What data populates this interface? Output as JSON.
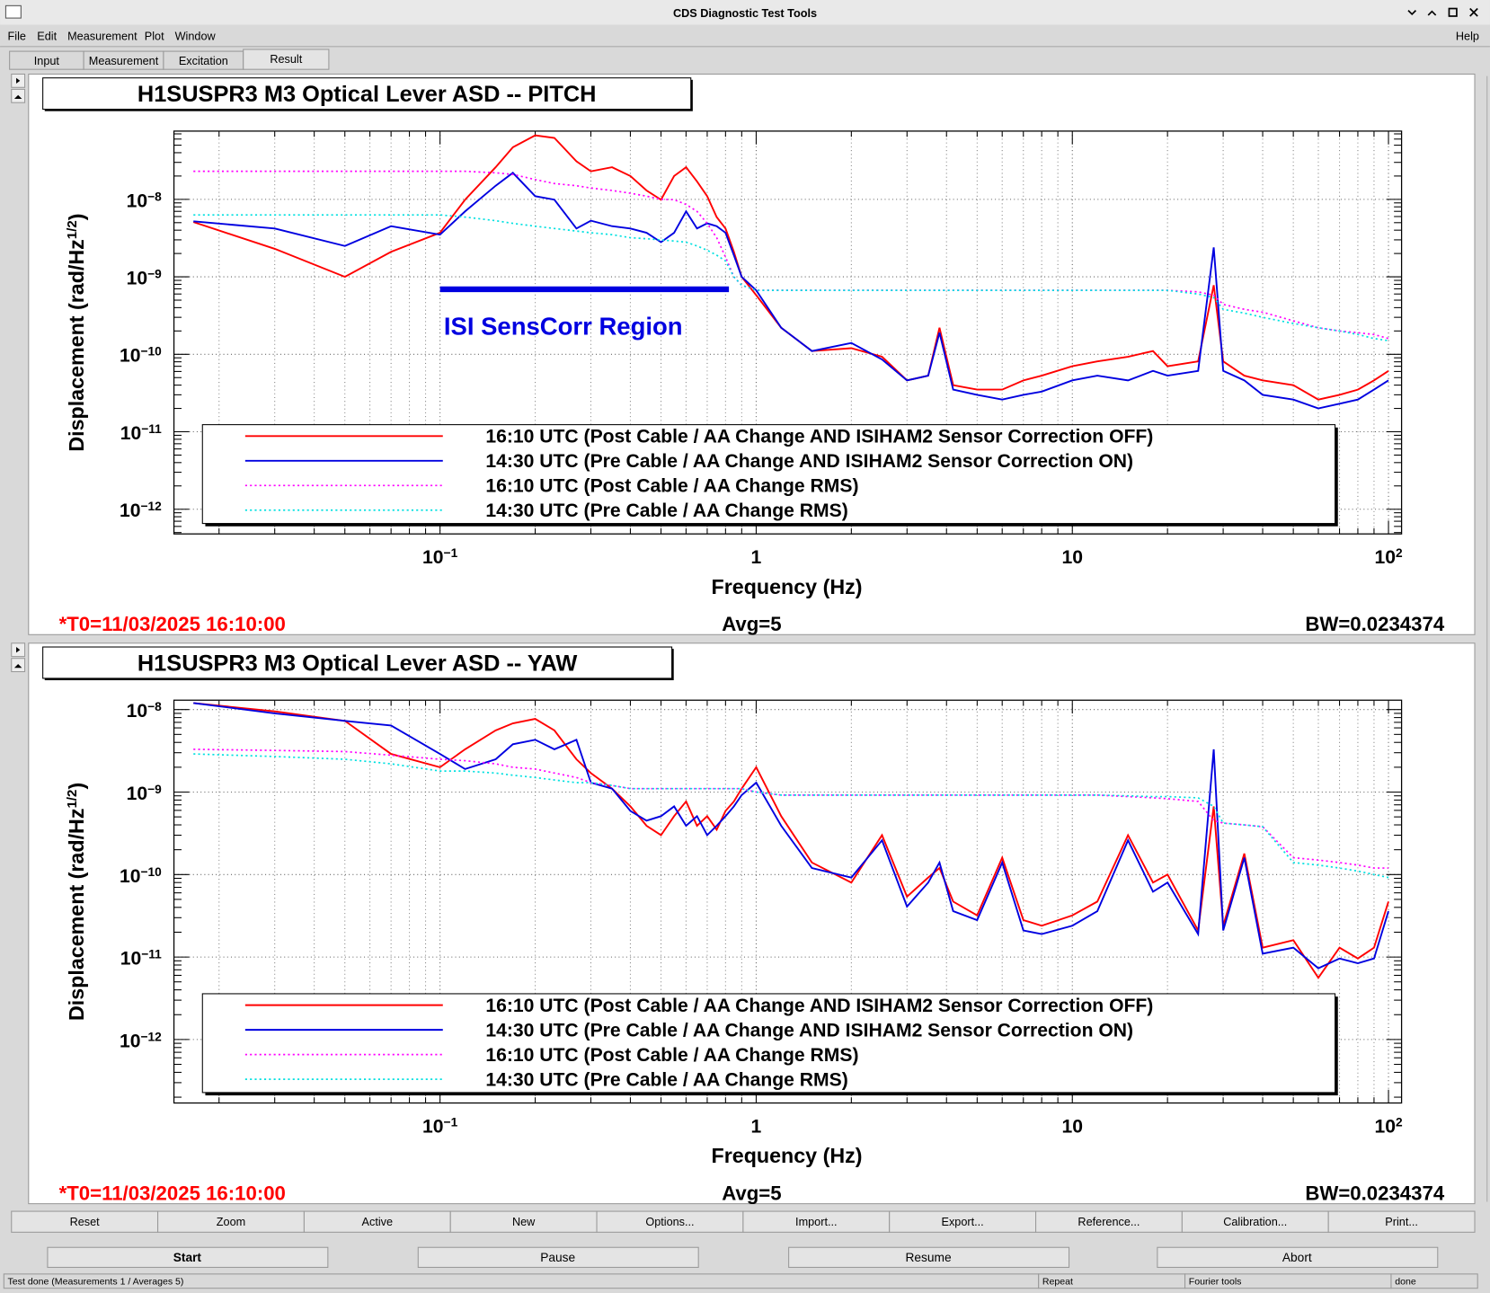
{
  "window": {
    "title": "CDS Diagnostic Test Tools"
  },
  "menu": [
    "File",
    "Edit",
    "Measurement",
    "Plot",
    "Window"
  ],
  "help": "Help",
  "tabs": [
    "Input",
    "Measurement",
    "Excitation",
    "Result"
  ],
  "selected_tab": 3,
  "chart_data": [
    {
      "type": "line",
      "title": "H1SUSPR3 M3 Optical Lever ASD -- PITCH",
      "xlabel": "Frequency (Hz)",
      "ylabel": "Displacement (rad/Hz^{1/2})",
      "xlog": true,
      "ylog": true,
      "grid": true,
      "legend": "bottom",
      "xlim": [
        0.0144,
        110
      ],
      "ylim": [
        4.8e-13,
        7.6e-08
      ],
      "xticks": [
        {
          "value": 0.1,
          "label": "10^{−1}"
        },
        1,
        10,
        {
          "value": 100,
          "label": "10^{2}"
        }
      ],
      "yticks": [
        {
          "value": 1e-12,
          "label": "10^{−12}"
        },
        {
          "value": 1e-11,
          "label": "10^{−11}"
        },
        {
          "value": 1e-10,
          "label": "10^{−10}"
        },
        {
          "value": 1e-09,
          "label": "10^{−9}"
        },
        {
          "value": 1e-08,
          "label": "10^{−8}"
        }
      ],
      "x": [
        0.0166,
        0.03,
        0.05,
        0.07,
        0.1,
        0.12,
        0.15,
        0.17,
        0.2,
        0.23,
        0.27,
        0.3,
        0.35,
        0.4,
        0.45,
        0.5,
        0.55,
        0.6,
        0.65,
        0.7,
        0.75,
        0.8,
        0.85,
        0.9,
        1,
        1.2,
        1.5,
        2,
        2.5,
        3,
        3.5,
        3.8,
        4.2,
        5,
        6,
        7,
        8,
        10,
        12,
        15,
        18,
        20,
        25,
        28,
        30,
        35,
        40,
        50,
        60,
        70,
        80,
        90,
        100
      ],
      "series": [
        {
          "name": "16:10 UTC (Post Cable / AA Change AND ISIHAM2 Sensor Correction OFF)",
          "color": "#ff0000",
          "style": "solid",
          "values": [
            5.1e-09,
            2.3e-09,
            1e-09,
            2.1e-09,
            3.7e-09,
            9.9e-09,
            2.6e-08,
            4.7e-08,
            6.7e-08,
            6.2e-08,
            3.1e-08,
            2.3e-08,
            2.6e-08,
            2e-08,
            1.3e-08,
            9.9e-09,
            2e-08,
            2.6e-08,
            1.7e-08,
            1.1e-08,
            5.9e-09,
            4.2e-09,
            2.1e-09,
            1e-09,
            5.8e-10,
            2.2e-10,
            1.1e-10,
            1.2e-10,
            9.3e-11,
            4.6e-11,
            5.3e-11,
            2.2e-10,
            4e-11,
            3.5e-11,
            3.5e-11,
            4.6e-11,
            5.3e-11,
            7e-11,
            8.1e-11,
            9.3e-11,
            1.1e-10,
            7e-11,
            8.1e-11,
            7.8e-10,
            8.1e-11,
            5.3e-11,
            4.6e-11,
            4e-11,
            2.6e-11,
            3e-11,
            3.5e-11,
            4.6e-11,
            6.1e-11
          ]
        },
        {
          "name": "14:30 UTC (Pre Cable / AA Change AND ISIHAM2 Sensor Correction ON)",
          "color": "#0000e0",
          "style": "solid",
          "values": [
            5.2e-09,
            4.2e-09,
            2.5e-09,
            4.5e-09,
            3.5e-09,
            7e-09,
            1.5e-08,
            2.2e-08,
            1.1e-08,
            9.9e-09,
            4.2e-09,
            5.3e-09,
            4.5e-09,
            4.2e-09,
            3.7e-09,
            2.8e-09,
            3.7e-09,
            7e-09,
            4.2e-09,
            4.9e-09,
            4.5e-09,
            3.7e-09,
            1.9e-09,
            1e-09,
            6.7e-10,
            2.2e-10,
            1.1e-10,
            1.4e-10,
            8.6e-11,
            4.6e-11,
            5.3e-11,
            1.9e-10,
            3.5e-11,
            3e-11,
            2.6e-11,
            3e-11,
            3.3e-11,
            4.6e-11,
            5.3e-11,
            4.6e-11,
            6.1e-11,
            5.3e-11,
            6.1e-11,
            2.4e-09,
            6.1e-11,
            4.6e-11,
            3e-11,
            2.6e-11,
            2e-11,
            2.3e-11,
            2.6e-11,
            3.5e-11,
            4.6e-11
          ]
        },
        {
          "name": "16:10 UTC (Post Cable / AA Change RMS)",
          "color": "#ff00ff",
          "style": "dotted",
          "values": [
            2.3e-08,
            2.3e-08,
            2.3e-08,
            2.3e-08,
            2.3e-08,
            2.3e-08,
            2.2e-08,
            2.1e-08,
            1.8e-08,
            1.6e-08,
            1.5e-08,
            1.4e-08,
            1.3e-08,
            1.2e-08,
            1.1e-08,
            1e-08,
            9.9e-09,
            8.6e-09,
            7e-09,
            4.9e-09,
            3.2e-09,
            1.8e-09,
            1e-09,
            7.8e-10,
            6.7e-10,
            6.7e-10,
            6.7e-10,
            6.7e-10,
            6.7e-10,
            6.7e-10,
            6.7e-10,
            6.7e-10,
            6.7e-10,
            6.7e-10,
            6.7e-10,
            6.7e-10,
            6.7e-10,
            6.7e-10,
            6.7e-10,
            6.7e-10,
            6.7e-10,
            6.7e-10,
            6.4e-10,
            5.8e-10,
            4.4e-10,
            3.8e-10,
            3.5e-10,
            2.7e-10,
            2.2e-10,
            2e-10,
            1.9e-10,
            1.8e-10,
            1.6e-10
          ]
        },
        {
          "name": "14:30 UTC (Pre Cable / AA Change RMS)",
          "color": "#00e0e0",
          "style": "dotted",
          "values": [
            6.3e-09,
            6.3e-09,
            6.3e-09,
            6.3e-09,
            6.3e-09,
            5.9e-09,
            5.3e-09,
            4.9e-09,
            4.5e-09,
            4.2e-09,
            3.9e-09,
            3.7e-09,
            3.5e-09,
            3.2e-09,
            3.1e-09,
            3e-09,
            2.9e-09,
            2.8e-09,
            2.5e-09,
            2.2e-09,
            1.9e-09,
            1.6e-09,
            1e-09,
            7.8e-10,
            6.7e-10,
            6.7e-10,
            6.7e-10,
            6.7e-10,
            6.7e-10,
            6.7e-10,
            6.7e-10,
            6.7e-10,
            6.7e-10,
            6.7e-10,
            6.7e-10,
            6.7e-10,
            6.7e-10,
            6.7e-10,
            6.7e-10,
            6.7e-10,
            6.7e-10,
            6.7e-10,
            6e-10,
            5.4e-10,
            3.8e-10,
            3.4e-10,
            3e-10,
            2.5e-10,
            2.2e-10,
            2e-10,
            1.8e-10,
            1.6e-10,
            1.5e-10
          ]
        }
      ],
      "region": {
        "x": [
          0.1,
          0.82
        ],
        "y": 6.9e-10,
        "label": "ISI SensCorr Region",
        "color": "#0000e0"
      },
      "footer": {
        "t0": "*T0=11/03/2025 16:10:00",
        "avg": "Avg=5",
        "bw": "BW=0.0234374"
      }
    },
    {
      "type": "line",
      "title": "H1SUSPR3 M3 Optical Lever ASD -- YAW",
      "xlabel": "Frequency (Hz)",
      "ylabel": "Displacement (rad/Hz^{1/2})",
      "xlog": true,
      "ylog": true,
      "grid": true,
      "legend": "bottom",
      "xlim": [
        0.0144,
        110
      ],
      "ylim": [
        1.7e-13,
        1.3e-08
      ],
      "xticks": [
        {
          "value": 0.1,
          "label": "10^{−1}"
        },
        1,
        10,
        {
          "value": 100,
          "label": "10^{2}"
        }
      ],
      "yticks": [
        {
          "value": 1e-12,
          "label": "10^{−12}"
        },
        {
          "value": 1e-11,
          "label": "10^{−11}"
        },
        {
          "value": 1e-10,
          "label": "10^{−10}"
        },
        {
          "value": 1e-09,
          "label": "10^{−9}"
        },
        {
          "value": 1e-08,
          "label": "10^{−8}"
        }
      ],
      "x": [
        0.0166,
        0.03,
        0.05,
        0.07,
        0.1,
        0.12,
        0.15,
        0.17,
        0.2,
        0.23,
        0.27,
        0.3,
        0.35,
        0.4,
        0.45,
        0.5,
        0.55,
        0.6,
        0.65,
        0.7,
        0.75,
        0.8,
        0.85,
        0.9,
        1,
        1.2,
        1.5,
        2,
        2.5,
        3,
        3.5,
        3.8,
        4.2,
        5,
        6,
        7,
        8,
        10,
        12,
        15,
        18,
        20,
        25,
        28,
        30,
        35,
        40,
        50,
        60,
        70,
        80,
        90,
        100
      ],
      "series": [
        {
          "name": "16:10 UTC (Post Cable / AA Change AND ISIHAM2 Sensor Correction OFF)",
          "color": "#ff0000",
          "style": "solid",
          "values": [
            1.2e-08,
            9.5e-09,
            7.3e-09,
            2.9e-09,
            2e-09,
            3.3e-09,
            5.6e-09,
            6.8e-09,
            7.7e-09,
            5.6e-09,
            2.5e-09,
            1.7e-09,
            1.1e-09,
            6.7e-10,
            3.9e-10,
            3e-10,
            5.1e-10,
            7.7e-10,
            3.9e-10,
            5.1e-10,
            3.5e-10,
            5.9e-10,
            7.7e-10,
            1.1e-09,
            2e-09,
            5.1e-10,
            1.4e-10,
            8e-11,
            3e-10,
            5.4e-11,
            9.2e-11,
            1.2e-10,
            4.7e-11,
            3.2e-11,
            1.6e-10,
            2.8e-11,
            2.4e-11,
            3.2e-11,
            4.7e-11,
            3e-10,
            8e-11,
            1e-10,
            2.1e-11,
            6.7e-10,
            2.4e-11,
            1.8e-10,
            1.3e-11,
            1.6e-11,
            5.6e-12,
            1.3e-11,
            9.6e-12,
            1.3e-11,
            4.7e-11
          ]
        },
        {
          "name": "14:30 UTC (Pre Cable / AA Change AND ISIHAM2 Sensor Correction ON)",
          "color": "#0000e0",
          "style": "solid",
          "values": [
            1.2e-08,
            9e-09,
            7.3e-09,
            6.4e-09,
            2.9e-09,
            1.9e-09,
            2.5e-09,
            3.8e-09,
            4.3e-09,
            3.3e-09,
            4.3e-09,
            1.3e-09,
            1.1e-09,
            5.9e-10,
            4.5e-10,
            5.1e-10,
            6.7e-10,
            3.9e-10,
            5.1e-10,
            3e-10,
            3.9e-10,
            5.1e-10,
            6.7e-10,
            9.2e-10,
            1.3e-09,
            3.9e-10,
            1.2e-10,
            9.2e-11,
            2.6e-10,
            4.1e-11,
            8e-11,
            1.4e-10,
            3.6e-11,
            2.8e-11,
            1.4e-10,
            2.1e-11,
            1.9e-11,
            2.4e-11,
            3.6e-11,
            2.6e-10,
            6.2e-11,
            8e-11,
            1.9e-11,
            3.3e-09,
            2.1e-11,
            1.6e-10,
            1.1e-11,
            1.3e-11,
            7.3e-12,
            9.6e-12,
            8.4e-12,
            9.6e-12,
            3.6e-11
          ]
        },
        {
          "name": "16:10 UTC (Post Cable / AA Change RMS)",
          "color": "#ff00ff",
          "style": "dotted",
          "values": [
            3.3e-09,
            3.2e-09,
            3.1e-09,
            2.8e-09,
            2.5e-09,
            2.4e-09,
            2.2e-09,
            2e-09,
            1.9e-09,
            1.7e-09,
            1.5e-09,
            1.3e-09,
            1.2e-09,
            1.1e-09,
            1.1e-09,
            1.1e-09,
            1.1e-09,
            1.1e-09,
            1.1e-09,
            1.1e-09,
            1.1e-09,
            1.1e-09,
            1.1e-09,
            1.1e-09,
            1e-09,
            9.2e-10,
            9.2e-10,
            9.2e-10,
            9.2e-10,
            9.2e-10,
            9.2e-10,
            9.2e-10,
            9.2e-10,
            9.2e-10,
            9.2e-10,
            9.2e-10,
            9.2e-10,
            9.2e-10,
            9.2e-10,
            8.8e-10,
            8.5e-10,
            8.3e-10,
            7.7e-10,
            4.5e-10,
            4.2e-10,
            4e-10,
            3.8e-10,
            1.6e-10,
            1.5e-10,
            1.4e-10,
            1.3e-10,
            1.2e-10,
            1.2e-10
          ]
        },
        {
          "name": "14:30 UTC (Pre Cable / AA Change RMS)",
          "color": "#00e0e0",
          "style": "dotted",
          "values": [
            2.9e-09,
            2.7e-09,
            2.5e-09,
            2.2e-09,
            1.8e-09,
            1.8e-09,
            1.7e-09,
            1.6e-09,
            1.5e-09,
            1.4e-09,
            1.3e-09,
            1.3e-09,
            1.2e-09,
            1.1e-09,
            1.1e-09,
            1.1e-09,
            1.1e-09,
            1.1e-09,
            1.1e-09,
            1.1e-09,
            1.1e-09,
            1.1e-09,
            1.1e-09,
            1.1e-09,
            1e-09,
            9.2e-10,
            9.2e-10,
            9.2e-10,
            9.2e-10,
            9.2e-10,
            9.2e-10,
            9.2e-10,
            9.2e-10,
            9.2e-10,
            9.2e-10,
            9.2e-10,
            9.2e-10,
            9.2e-10,
            9.2e-10,
            9e-10,
            8.8e-10,
            8.8e-10,
            8.5e-10,
            6.7e-10,
            4.2e-10,
            4e-10,
            3.8e-10,
            1.4e-10,
            1.3e-10,
            1.2e-10,
            1.1e-10,
            1e-10,
            9.2e-11
          ]
        }
      ],
      "footer": {
        "t0": "*T0=11/03/2025 16:10:00",
        "avg": "Avg=5",
        "bw": "BW=0.0234374"
      }
    }
  ],
  "plot_buttons": [
    "Reset",
    "Zoom",
    "Active",
    "New",
    "Options...",
    "Import...",
    "Export...",
    "Reference...",
    "Calibration...",
    "Print..."
  ],
  "control_buttons": [
    {
      "label": "Start",
      "enabled": true
    },
    {
      "label": "Pause",
      "enabled": false
    },
    {
      "label": "Resume",
      "enabled": false
    },
    {
      "label": "Abort",
      "enabled": false
    }
  ],
  "status": [
    "Test done (Measurements 1 / Averages 5)",
    "Repeat",
    "Fourier tools",
    "done"
  ]
}
